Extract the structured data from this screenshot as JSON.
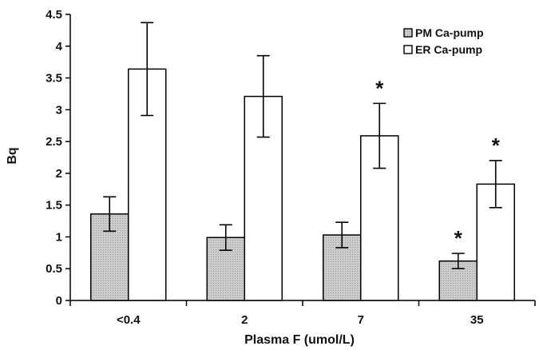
{
  "chart_data": {
    "type": "bar",
    "title": "",
    "xlabel": "Plasma F (umol/L)",
    "ylabel": "Bq",
    "ylim": [
      0,
      4.5
    ],
    "yticks": [
      0,
      0.5,
      1,
      1.5,
      2,
      2.5,
      3,
      3.5,
      4,
      4.5
    ],
    "ytick_labels": [
      "0",
      "0.5",
      "1",
      "1.5",
      "2",
      "2.5",
      "3",
      "3.5",
      "4",
      "4.5"
    ],
    "categories": [
      "<0.4",
      "2",
      "7",
      "35"
    ],
    "series": [
      {
        "name": "PM Ca-pump",
        "values": [
          1.36,
          0.99,
          1.03,
          0.62
        ],
        "error": [
          0.27,
          0.2,
          0.2,
          0.12
        ],
        "significance": [
          "",
          "",
          "",
          "*"
        ],
        "fill": "#cccccc"
      },
      {
        "name": "ER Ca-pump",
        "values": [
          3.64,
          3.21,
          2.59,
          1.83
        ],
        "error": [
          0.73,
          0.64,
          0.51,
          0.37
        ],
        "significance": [
          "",
          "",
          "*",
          "*"
        ],
        "fill": "#ffffff"
      }
    ],
    "legend_position": "top-right",
    "grid": false
  }
}
